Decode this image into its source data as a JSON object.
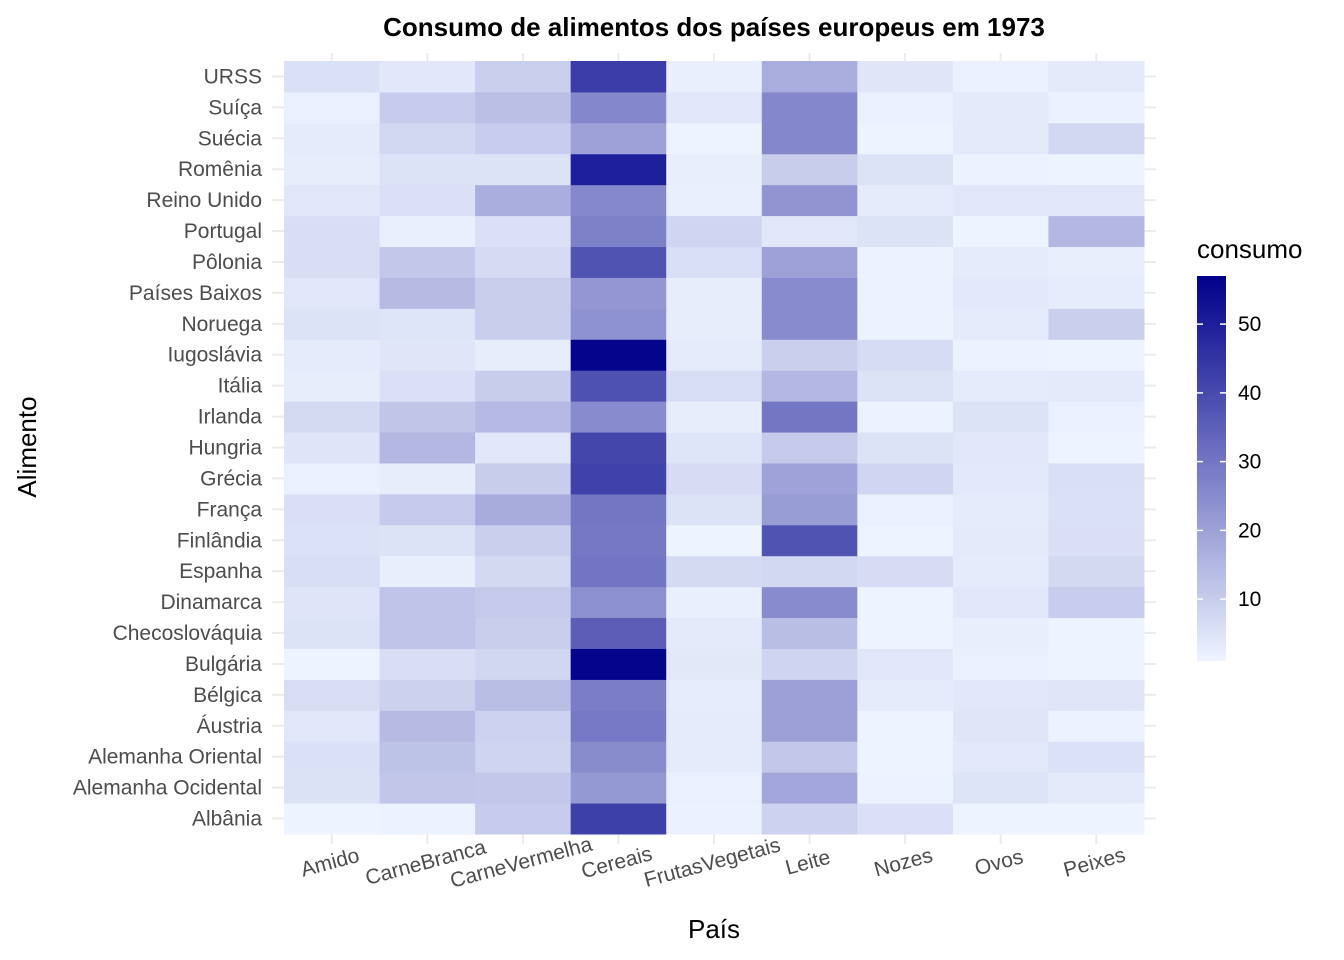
{
  "chart_data": {
    "type": "heatmap",
    "title": "Consumo de alimentos dos países europeus em 1973",
    "xlabel": "País",
    "ylabel": "Alimento",
    "x_categories": [
      "Amido",
      "CarneBranca",
      "CarneVermelha",
      "Cereais",
      "FrutasVegetais",
      "Leite",
      "Nozes",
      "Ovos",
      "Peixes"
    ],
    "y_categories": [
      "Albânia",
      "Alemanha Ocidental",
      "Alemanha Oriental",
      "Áustria",
      "Bélgica",
      "Bulgária",
      "Checoslováquia",
      "Dinamarca",
      "Espanha",
      "Finlândia",
      "França",
      "Grécia",
      "Hungria",
      "Irlanda",
      "Itália",
      "Iugoslávia",
      "Noruega",
      "Países Baixos",
      "Pôlonia",
      "Portugal",
      "Reino Unido",
      "Romênia",
      "Suécia",
      "Suíça",
      "URSS"
    ],
    "rows": [
      {
        "label": "Albânia",
        "values": [
          0.6,
          1.4,
          10.1,
          42.3,
          1.7,
          8.9,
          5.5,
          0.5,
          0.2
        ]
      },
      {
        "label": "Alemanha Ocidental",
        "values": [
          5.2,
          11.4,
          11.1,
          22.1,
          2.0,
          19.0,
          1.4,
          4.7,
          3.4
        ]
      },
      {
        "label": "Alemanha Oriental",
        "values": [
          5.7,
          12.5,
          8.4,
          24.9,
          3.0,
          11.1,
          0.8,
          3.6,
          5.4
        ]
      },
      {
        "label": "Áustria",
        "values": [
          4.0,
          14.0,
          8.9,
          29.2,
          3.1,
          20.2,
          0.8,
          4.2,
          1.4
        ]
      },
      {
        "label": "Bélgica",
        "values": [
          6.2,
          9.0,
          13.5,
          28.0,
          2.8,
          20.2,
          3.0,
          3.9,
          4.2
        ]
      },
      {
        "label": "Bulgária",
        "values": [
          1.0,
          6.0,
          7.8,
          56.0,
          3.7,
          8.3,
          4.0,
          2.0,
          0.6
        ]
      },
      {
        "label": "Checoslováquia",
        "values": [
          5.0,
          12.0,
          9.7,
          35.6,
          3.4,
          13.4,
          1.2,
          2.4,
          1.2
        ]
      },
      {
        "label": "Dinamarca",
        "values": [
          4.6,
          12.0,
          10.6,
          24.0,
          2.2,
          25.0,
          0.3,
          4.0,
          9.9
        ]
      },
      {
        "label": "Espanha",
        "values": [
          6.1,
          2.3,
          7.1,
          30.1,
          7.0,
          7.4,
          6.5,
          3.1,
          7.2
        ]
      },
      {
        "label": "Finlândia",
        "values": [
          5.4,
          5.0,
          9.5,
          29.5,
          1.0,
          38.0,
          0.6,
          3.3,
          5.8
        ]
      },
      {
        "label": "França",
        "values": [
          5.8,
          10.5,
          17.5,
          30.0,
          5.0,
          21.0,
          2.0,
          3.0,
          5.7
        ]
      },
      {
        "label": "Grécia",
        "values": [
          2.0,
          2.5,
          10.0,
          42.0,
          6.5,
          19.8,
          8.0,
          3.6,
          5.9
        ]
      },
      {
        "label": "Hungria",
        "values": [
          4.6,
          14.9,
          4.0,
          41.0,
          4.5,
          10.7,
          5.0,
          3.8,
          0.4
        ]
      },
      {
        "label": "Irlanda",
        "values": [
          7.0,
          11.5,
          14.5,
          25.0,
          2.5,
          30.0,
          1.5,
          5.0,
          2.0
        ]
      },
      {
        "label": "Itália",
        "values": [
          2.5,
          5.5,
          10.0,
          38.4,
          6.3,
          15.0,
          5.0,
          3.0,
          3.4
        ]
      },
      {
        "label": "Iugoslávia",
        "values": [
          3.0,
          4.4,
          2.5,
          56.0,
          3.0,
          9.5,
          6.6,
          1.4,
          0.5
        ]
      },
      {
        "label": "Noruega",
        "values": [
          5.0,
          4.5,
          9.8,
          23.5,
          2.5,
          25.0,
          1.5,
          3.0,
          9.5
        ]
      },
      {
        "label": "Países Baixos",
        "values": [
          4.0,
          14.0,
          9.7,
          22.5,
          2.5,
          25.0,
          1.5,
          3.5,
          2.8
        ]
      },
      {
        "label": "Pôlonia",
        "values": [
          6.0,
          11.2,
          6.7,
          38.0,
          5.9,
          20.0,
          1.5,
          3.0,
          2.3
        ]
      },
      {
        "label": "Portugal",
        "values": [
          6.0,
          2.2,
          5.5,
          27.5,
          8.0,
          4.0,
          5.0,
          0.8,
          15.0
        ]
      },
      {
        "label": "Reino Unido",
        "values": [
          4.0,
          5.5,
          17.0,
          25.8,
          2.2,
          23.0,
          3.1,
          4.0,
          4.0
        ]
      },
      {
        "label": "Romênia",
        "values": [
          2.5,
          5.0,
          5.0,
          50.0,
          2.4,
          10.0,
          5.0,
          1.5,
          0.3
        ]
      },
      {
        "label": "Suécia",
        "values": [
          3.0,
          7.5,
          9.9,
          20.0,
          1.0,
          26.0,
          1.2,
          3.3,
          7.5
        ]
      },
      {
        "label": "Suíça",
        "values": [
          2.0,
          10.2,
          13.1,
          26.0,
          4.0,
          26.0,
          2.0,
          3.4,
          1.7
        ]
      },
      {
        "label": "URSS",
        "values": [
          5.6,
          3.8,
          9.6,
          43.0,
          2.1,
          17.2,
          4.3,
          2.0,
          3.2
        ]
      }
    ],
    "color_scale": {
      "low": "#eef4ff",
      "high": "#00008b",
      "domain": [
        1,
        57
      ]
    },
    "legend": {
      "title": "consumo",
      "ticks": [
        10,
        20,
        30,
        40,
        50
      ],
      "position": "right"
    },
    "grid": false
  }
}
